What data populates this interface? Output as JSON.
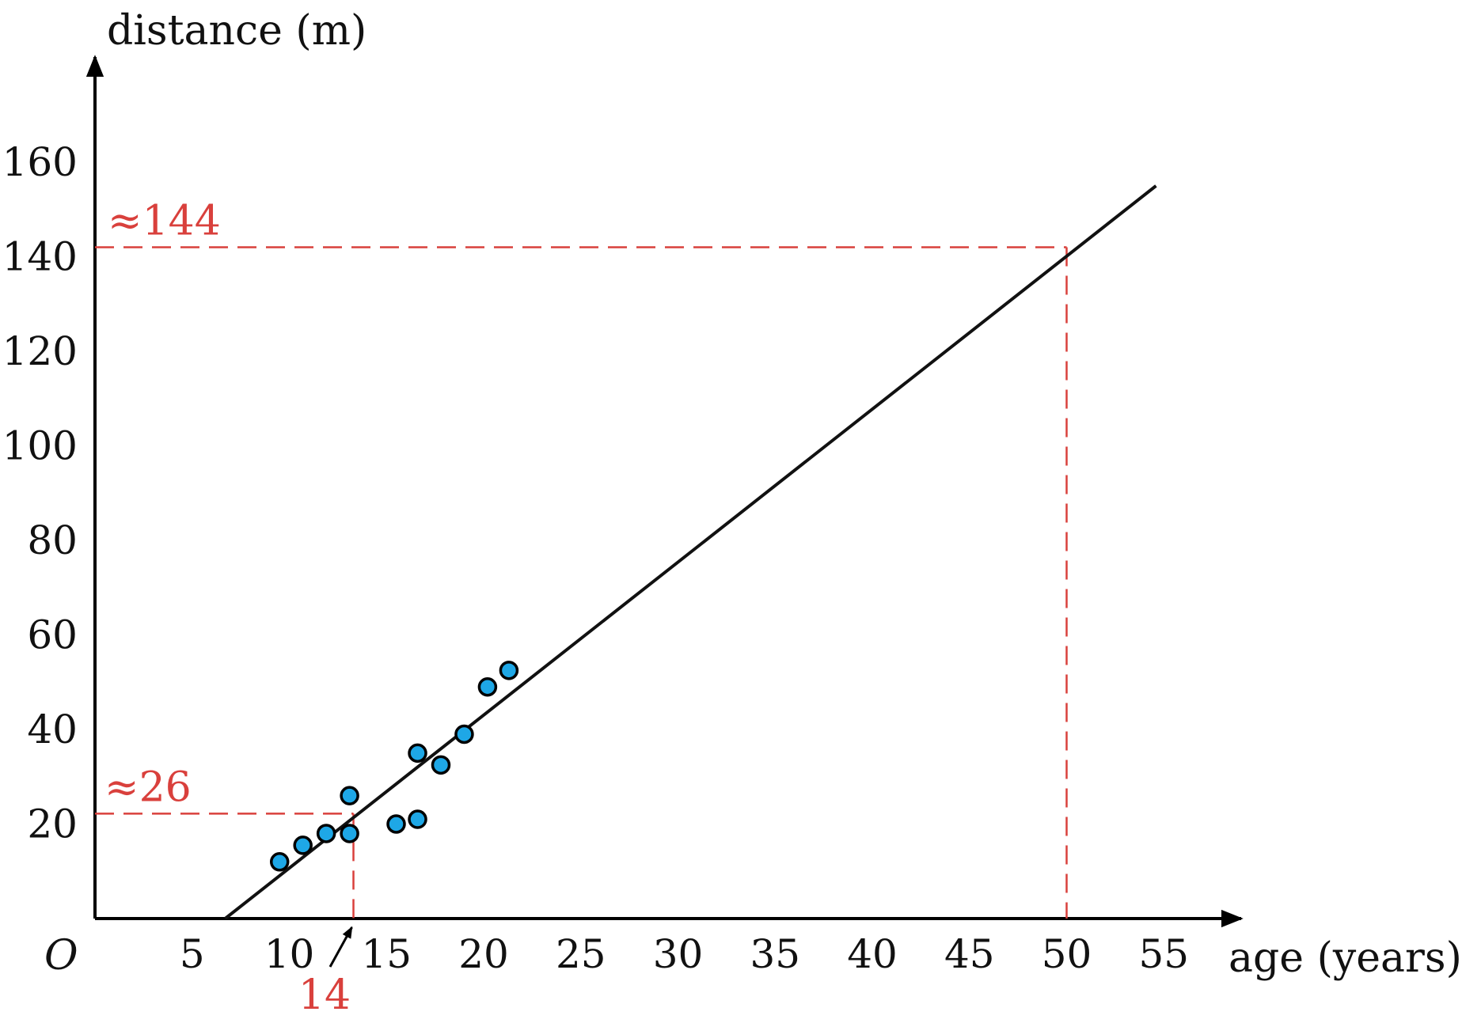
{
  "chart_data": {
    "type": "scatter",
    "ylabel": "distance (m)",
    "xlabel": "age (years)",
    "origin_label": "O",
    "xlim": [
      0,
      58
    ],
    "ylim": [
      0,
      180
    ],
    "x_ticks": [
      5,
      10,
      15,
      20,
      25,
      30,
      35,
      40,
      45,
      50,
      55
    ],
    "y_ticks": [
      20,
      40,
      60,
      80,
      100,
      120,
      140,
      160
    ],
    "points": [
      {
        "x": 9.5,
        "y": 12
      },
      {
        "x": 10.7,
        "y": 15.5
      },
      {
        "x": 11.9,
        "y": 18
      },
      {
        "x": 13.1,
        "y": 18
      },
      {
        "x": 13.1,
        "y": 26
      },
      {
        "x": 15.5,
        "y": 20
      },
      {
        "x": 16.6,
        "y": 21
      },
      {
        "x": 16.6,
        "y": 35
      },
      {
        "x": 17.8,
        "y": 32.5
      },
      {
        "x": 19.0,
        "y": 39
      },
      {
        "x": 20.2,
        "y": 49
      },
      {
        "x": 21.3,
        "y": 52.5
      }
    ],
    "line": {
      "x": [
        6.7,
        54.6
      ],
      "y": [
        0,
        155
      ]
    },
    "point_color": "#1ea7e6",
    "annotation_color": "#d9403c",
    "annotations": {
      "guide_low": {
        "x": 13.3,
        "y": 22.2,
        "y_label": "≈26",
        "x_label": "14"
      },
      "guide_high": {
        "x": 50,
        "y": 142,
        "y_label": "≈144"
      }
    }
  }
}
